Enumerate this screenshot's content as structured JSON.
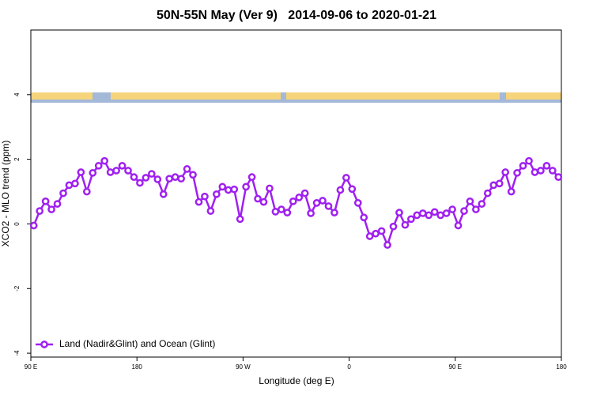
{
  "chart_data": {
    "type": "line",
    "title": "50N-55N May (Ver 9)   2014-09-06 to 2020-01-21",
    "x_label": "Longitude (deg E)",
    "y_label": "XCO2 - MLO trend (ppm)",
    "xlim": [
      90,
      540
    ],
    "ylim": [
      -4.12,
      6
    ],
    "xticks": [
      {
        "value": 90,
        "label": "90 E"
      },
      {
        "value": 180,
        "label": "180"
      },
      {
        "value": 270,
        "label": "90 W"
      },
      {
        "value": 360,
        "label": "0"
      },
      {
        "value": 450,
        "label": "90 E"
      },
      {
        "value": 540,
        "label": "180"
      }
    ],
    "yticks": [
      -4,
      -2,
      0,
      2,
      4
    ],
    "legend": "bottom-left",
    "series": [
      {
        "name": "Land (Nadir&Glint) and Ocean (Glint)",
        "color": "#a020f0",
        "x": [
          92.5,
          97.5,
          102.5,
          107.5,
          112.5,
          117.5,
          122.5,
          127.5,
          132.5,
          137.5,
          142.5,
          147.5,
          152.5,
          157.5,
          162.5,
          167.5,
          172.5,
          177.5,
          182.5,
          187.5,
          192.5,
          197.5,
          202.5,
          207.5,
          212.5,
          217.5,
          222.5,
          227.5,
          232.5,
          237.5,
          242.5,
          247.5,
          252.5,
          257.5,
          262.5,
          267.5,
          272.5,
          277.5,
          282.5,
          287.5,
          292.5,
          297.5,
          302.5,
          307.5,
          312.5,
          317.5,
          322.5,
          327.5,
          332.5,
          337.5,
          342.5,
          347.5,
          352.5,
          357.5,
          362.5,
          367.5,
          372.5,
          377.5,
          382.5,
          387.5,
          392.5,
          397.5,
          402.5,
          407.5,
          412.5,
          417.5,
          422.5,
          427.5,
          432.5,
          437.5,
          442.5,
          447.5,
          452.5,
          457.5,
          462.5,
          467.5,
          472.5,
          477.5,
          482.5,
          487.5,
          492.5,
          497.5,
          502.5,
          507.5,
          512.5,
          517.5,
          522.5,
          527.5,
          532.5,
          537.5
        ],
        "values": [
          -0.05,
          0.4,
          0.7,
          0.45,
          0.62,
          0.95,
          1.2,
          1.25,
          1.6,
          1.0,
          1.58,
          1.8,
          1.95,
          1.6,
          1.65,
          1.8,
          1.65,
          1.45,
          1.27,
          1.43,
          1.55,
          1.38,
          0.92,
          1.4,
          1.45,
          1.4,
          1.7,
          1.52,
          0.68,
          0.85,
          0.4,
          0.92,
          1.15,
          1.05,
          1.07,
          0.15,
          1.15,
          1.45,
          0.78,
          0.68,
          1.1,
          0.38,
          0.45,
          0.35,
          0.7,
          0.82,
          0.95,
          0.33,
          0.65,
          0.72,
          0.55,
          0.35,
          1.05,
          1.43,
          1.08,
          0.65,
          0.2,
          -0.38,
          -0.3,
          -0.22,
          -0.65,
          -0.08,
          0.35,
          -0.03,
          0.15,
          0.27,
          0.33,
          0.27,
          0.37,
          0.27,
          0.33,
          0.45,
          -0.05,
          0.4,
          0.7,
          0.45,
          0.62,
          0.95,
          1.2,
          1.25,
          1.6,
          1.0,
          1.58,
          1.8,
          1.95,
          1.6,
          1.65,
          1.8,
          1.65,
          1.45
        ]
      }
    ]
  }
}
